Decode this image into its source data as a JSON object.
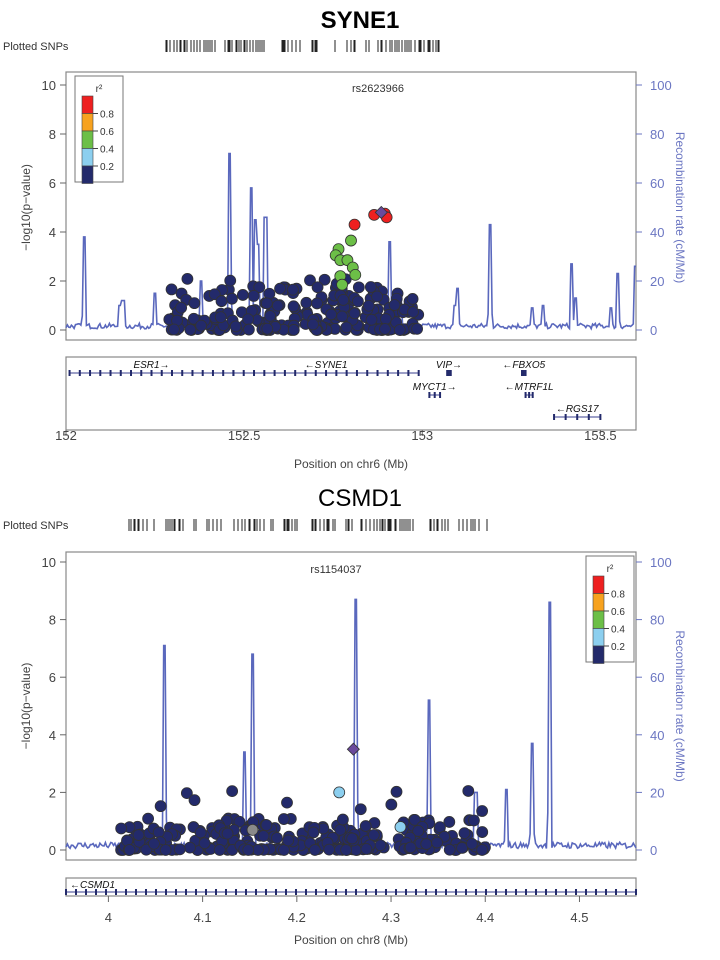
{
  "chart_data": [
    {
      "type": "scatter",
      "title": "SYNE1",
      "title_bold": true,
      "plotted_snps_label": "Plotted SNPs",
      "lead_snp": "rs2623966",
      "xlabel": "Position on chr6 (Mb)",
      "ylabel": "−log10(p−value)",
      "y2label": "Recombination rate (cM/Mb)",
      "xlim": [
        152.0,
        153.6
      ],
      "ylim": [
        0,
        10
      ],
      "y2lim": [
        0,
        100
      ],
      "xticks": [
        "152",
        "152.5",
        "153",
        "153.5"
      ],
      "xtick_values": [
        152.0,
        152.5,
        153.0,
        153.5
      ],
      "yticks": [
        "0",
        "2",
        "4",
        "6",
        "8",
        "10"
      ],
      "y2ticks": [
        "0",
        "20",
        "40",
        "60",
        "80",
        "100"
      ],
      "legend": {
        "title": "r²",
        "position": "top-left",
        "labels": [
          "0.8",
          "0.6",
          "0.4",
          "0.2"
        ],
        "colors": [
          "#ee2020",
          "#f7a21f",
          "#6cbf47",
          "#8ccfef",
          "#232a6b"
        ]
      },
      "lead": {
        "x": 152.885,
        "y": 4.8,
        "color": "#6a4a9c"
      },
      "points_high": [
        {
          "x": 152.81,
          "y": 4.3,
          "r2": "red"
        },
        {
          "x": 152.865,
          "y": 4.7,
          "r2": "red"
        },
        {
          "x": 152.895,
          "y": 4.75,
          "r2": "red"
        },
        {
          "x": 152.9,
          "y": 4.6,
          "r2": "red"
        },
        {
          "x": 152.765,
          "y": 3.3,
          "r2": "green"
        },
        {
          "x": 152.757,
          "y": 3.05,
          "r2": "green"
        },
        {
          "x": 152.77,
          "y": 2.85,
          "r2": "green"
        },
        {
          "x": 152.79,
          "y": 2.85,
          "r2": "green"
        },
        {
          "x": 152.8,
          "y": 3.65,
          "r2": "green"
        },
        {
          "x": 152.805,
          "y": 2.55,
          "r2": "green"
        },
        {
          "x": 152.812,
          "y": 2.25,
          "r2": "green"
        },
        {
          "x": 152.77,
          "y": 2.2,
          "r2": "green"
        },
        {
          "x": 152.775,
          "y": 1.85,
          "r2": "green"
        }
      ],
      "points_low_range": [
        152.29,
        152.99
      ],
      "recomb_peaks": [
        {
          "x": 152.05,
          "y": 38
        },
        {
          "x": 152.15,
          "y": 10
        },
        {
          "x": 152.16,
          "y": 12
        },
        {
          "x": 152.25,
          "y": 15
        },
        {
          "x": 152.38,
          "y": 20
        },
        {
          "x": 152.46,
          "y": 72
        },
        {
          "x": 152.52,
          "y": 58
        },
        {
          "x": 152.53,
          "y": 45
        },
        {
          "x": 152.54,
          "y": 35
        },
        {
          "x": 152.56,
          "y": 46
        },
        {
          "x": 152.91,
          "y": 36
        },
        {
          "x": 152.94,
          "y": 13
        },
        {
          "x": 153.09,
          "y": 10
        },
        {
          "x": 153.1,
          "y": 17
        },
        {
          "x": 153.19,
          "y": 43
        },
        {
          "x": 153.31,
          "y": 9
        },
        {
          "x": 153.34,
          "y": 10
        },
        {
          "x": 153.42,
          "y": 27
        },
        {
          "x": 153.43,
          "y": 13
        },
        {
          "x": 153.53,
          "y": 9
        },
        {
          "x": 153.55,
          "y": 23
        },
        {
          "x": 153.6,
          "y": 26
        }
      ],
      "genes": [
        {
          "name": "ESR1",
          "dir": "right",
          "start": 152.01,
          "end": 152.47,
          "row": 0
        },
        {
          "name": "SYNE1",
          "dir": "left",
          "start": 152.47,
          "end": 152.99,
          "row": 0
        },
        {
          "name": "VIP",
          "dir": "right",
          "start": 153.07,
          "end": 153.08,
          "row": 0
        },
        {
          "name": "FBXO5",
          "dir": "left",
          "start": 153.28,
          "end": 153.29,
          "row": 0
        },
        {
          "name": "MYCT1",
          "dir": "right",
          "start": 153.02,
          "end": 153.05,
          "row": 1
        },
        {
          "name": "MTRF1L",
          "dir": "left",
          "start": 153.29,
          "end": 153.31,
          "row": 1
        },
        {
          "name": "RGS17",
          "dir": "left",
          "start": 153.37,
          "end": 153.5,
          "row": 2
        }
      ]
    },
    {
      "type": "scatter",
      "title": "CSMD1",
      "title_bold": false,
      "plotted_snps_label": "Plotted SNPs",
      "lead_snp": "rs1154037",
      "xlabel": "Position on chr8 (Mb)",
      "ylabel": "−log10(p−value)",
      "y2label": "Recombination rate (cM/Mb)",
      "xlim": [
        3.955,
        4.56
      ],
      "ylim": [
        0,
        10
      ],
      "y2lim": [
        0,
        100
      ],
      "xticks": [
        "4",
        "4.1",
        "4.2",
        "4.3",
        "4.4",
        "4.5"
      ],
      "xtick_values": [
        4.0,
        4.1,
        4.2,
        4.3,
        4.4,
        4.5
      ],
      "yticks": [
        "0",
        "2",
        "4",
        "6",
        "8",
        "10"
      ],
      "y2ticks": [
        "0",
        "20",
        "40",
        "60",
        "80",
        "100"
      ],
      "legend": {
        "title": "r²",
        "position": "top-right",
        "labels": [
          "0.8",
          "0.6",
          "0.4",
          "0.2"
        ],
        "colors": [
          "#ee2020",
          "#f7a21f",
          "#6cbf47",
          "#8ccfef",
          "#232a6b"
        ]
      },
      "lead": {
        "x": 4.26,
        "y": 3.5,
        "color": "#6a4a9c"
      },
      "points_high": [
        {
          "x": 4.245,
          "y": 2.0,
          "r2": "lightblue"
        },
        {
          "x": 4.31,
          "y": 0.8,
          "r2": "lightblue"
        },
        {
          "x": 4.153,
          "y": 0.7,
          "r2": "grey"
        }
      ],
      "points_low_range": [
        4.012,
        4.4
      ],
      "recomb_peaks": [
        {
          "x": 4.06,
          "y": 71
        },
        {
          "x": 4.145,
          "y": 34
        },
        {
          "x": 4.153,
          "y": 68
        },
        {
          "x": 4.263,
          "y": 87
        },
        {
          "x": 4.34,
          "y": 52
        },
        {
          "x": 4.39,
          "y": 20
        },
        {
          "x": 4.422,
          "y": 21
        },
        {
          "x": 4.45,
          "y": 37
        },
        {
          "x": 4.468,
          "y": 86
        }
      ],
      "genes": [
        {
          "name": "CSMD1",
          "dir": "left",
          "start": 3.955,
          "end": 4.56,
          "row": 0
        }
      ]
    }
  ]
}
